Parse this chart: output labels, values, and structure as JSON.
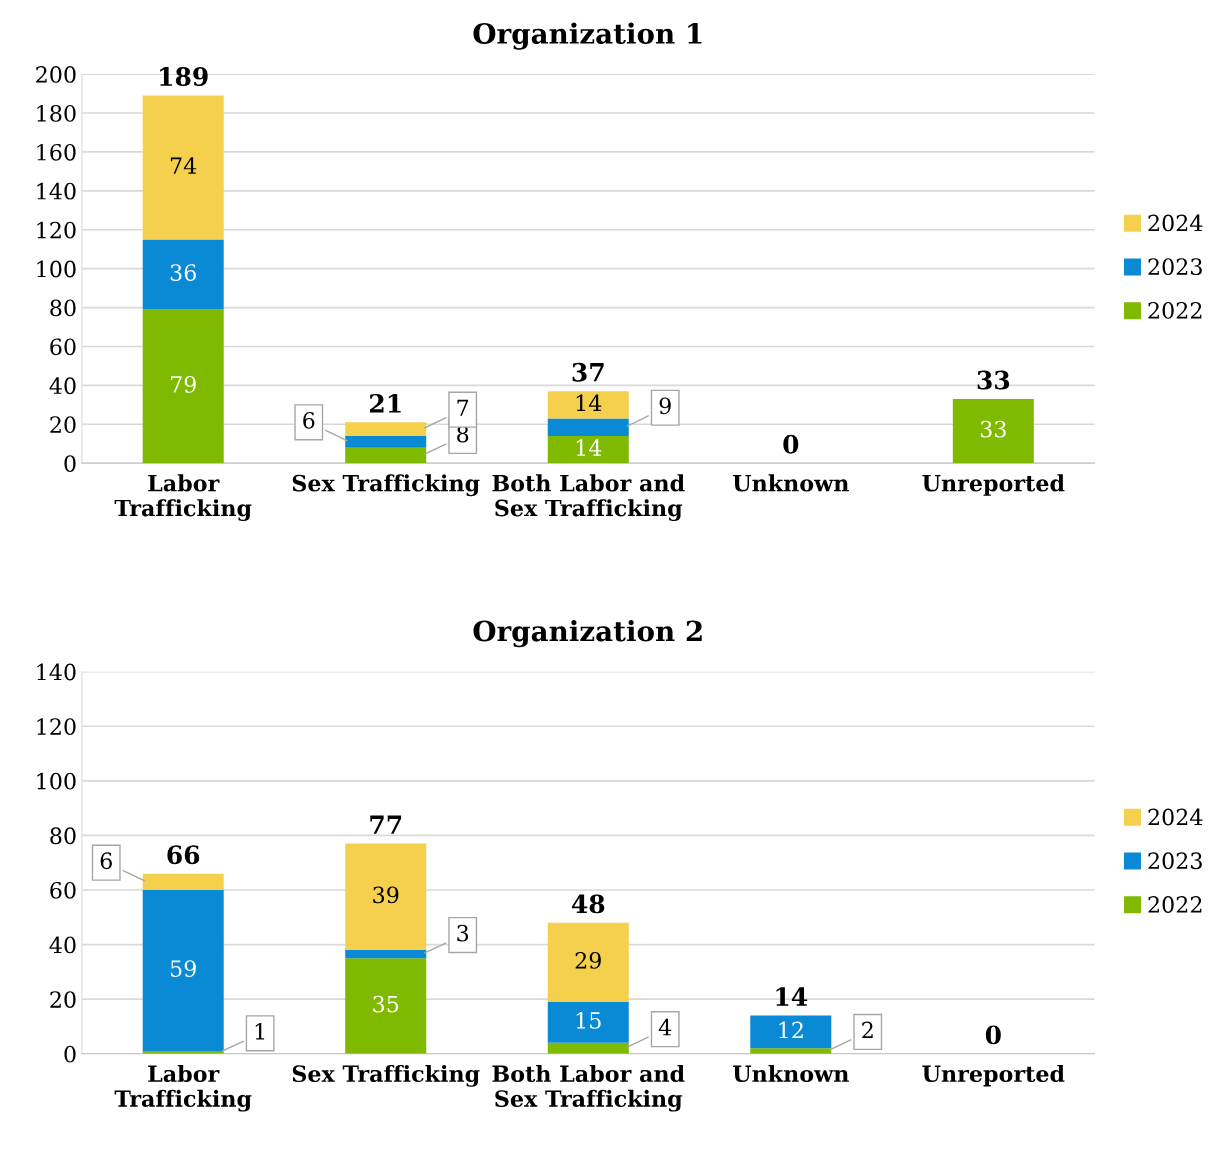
{
  "chart_data": [
    {
      "type": "bar",
      "title": "Organization 1",
      "stacked": true,
      "categories": [
        "Labor\nTrafficking",
        "Sex Trafficking",
        "Both Labor and\nSex Trafficking",
        "Unknown",
        "Unreported"
      ],
      "series": [
        {
          "name": "2022",
          "color": "#7fba00",
          "values": [
            79,
            8,
            14,
            0,
            33
          ],
          "value_labels": [
            "79",
            "8",
            "14",
            null,
            "33"
          ]
        },
        {
          "name": "2023",
          "color": "#0a8ad4",
          "values": [
            36,
            6,
            9,
            0,
            0
          ],
          "value_labels": [
            "36",
            "6",
            "9",
            null,
            null
          ]
        },
        {
          "name": "2024",
          "color": "#f5d04c",
          "values": [
            74,
            7,
            14,
            0,
            0
          ],
          "value_labels": [
            "74",
            "7",
            "14",
            null,
            null
          ]
        }
      ],
      "totals": [
        "189",
        "21",
        "37",
        "0",
        "33"
      ],
      "ylim": [
        0,
        200
      ],
      "yticks": [
        0,
        20,
        40,
        60,
        80,
        100,
        120,
        140,
        160,
        180,
        200
      ],
      "grid": "y",
      "legend": "right"
    },
    {
      "type": "bar",
      "title": "Organization 2",
      "stacked": true,
      "categories": [
        "Labor\nTrafficking",
        "Sex Trafficking",
        "Both Labor and\nSex Trafficking",
        "Unknown",
        "Unreported"
      ],
      "series": [
        {
          "name": "2022",
          "color": "#7fba00",
          "values": [
            1,
            35,
            4,
            2,
            0
          ],
          "value_labels": [
            "1",
            "35",
            "4",
            "2",
            null
          ]
        },
        {
          "name": "2023",
          "color": "#0a8ad4",
          "values": [
            59,
            3,
            15,
            12,
            0
          ],
          "value_labels": [
            "59",
            "3",
            "15",
            "12",
            null
          ]
        },
        {
          "name": "2024",
          "color": "#f5d04c",
          "values": [
            6,
            39,
            29,
            0,
            0
          ],
          "value_labels": [
            "6",
            "39",
            "29",
            null,
            null
          ]
        }
      ],
      "totals": [
        "66",
        "77",
        "48",
        "14",
        "0"
      ],
      "ylim": [
        0,
        140
      ],
      "yticks": [
        0,
        20,
        40,
        60,
        80,
        100,
        120,
        140
      ],
      "grid": "y",
      "legend": "right"
    }
  ]
}
